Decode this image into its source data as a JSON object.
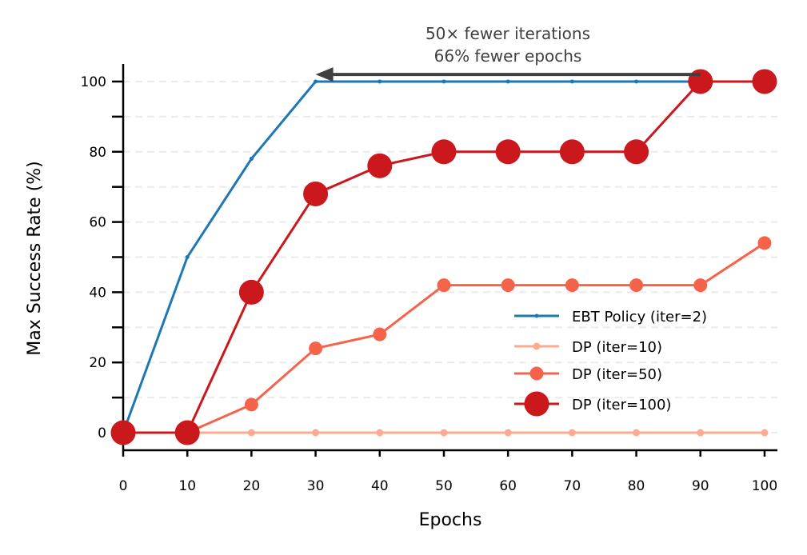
{
  "chart_data": {
    "type": "line",
    "title": "",
    "xlabel": "Epochs",
    "ylabel": "Max Success Rate (%)",
    "xlim": [
      0,
      102
    ],
    "ylim": [
      -5,
      105
    ],
    "x": [
      0,
      10,
      20,
      30,
      40,
      50,
      60,
      70,
      80,
      90,
      100
    ],
    "xticks": [
      "0",
      "10",
      "20",
      "30",
      "40",
      "50",
      "60",
      "70",
      "80",
      "90",
      "100"
    ],
    "yticks": [
      "0",
      "20",
      "40",
      "60",
      "80",
      "100"
    ],
    "ytick_values": [
      0,
      20,
      40,
      60,
      80,
      100
    ],
    "grid": "horizontal dashed every 10",
    "legend_position": "lower-right",
    "series": [
      {
        "name": "EBT Policy (iter=2)",
        "color": "#1f77b4",
        "marker_size": 2.5,
        "values": [
          0,
          50,
          78,
          100,
          100,
          100,
          100,
          100,
          100,
          100,
          100
        ]
      },
      {
        "name": "DP (iter=10)",
        "color": "#fcab8f",
        "marker_size": 4.5,
        "values": [
          0,
          0,
          0,
          0,
          0,
          0,
          0,
          0,
          0,
          0,
          0
        ]
      },
      {
        "name": "DP (iter=50)",
        "color": "#f6634b",
        "marker_size": 8.5,
        "values": [
          0,
          0,
          8,
          24,
          28,
          42,
          42,
          42,
          42,
          42,
          54
        ]
      },
      {
        "name": "DP (iter=100)",
        "color": "#cb181d",
        "marker_size": 15.5,
        "values": [
          0,
          0,
          40,
          68,
          76,
          80,
          80,
          80,
          80,
          100,
          100
        ]
      }
    ],
    "annotation": {
      "lines": [
        "50× fewer iterations",
        "66% fewer epochs"
      ],
      "arrow_from": [
        90,
        102
      ],
      "arrow_to": [
        30,
        102
      ],
      "color": "#404040"
    }
  }
}
